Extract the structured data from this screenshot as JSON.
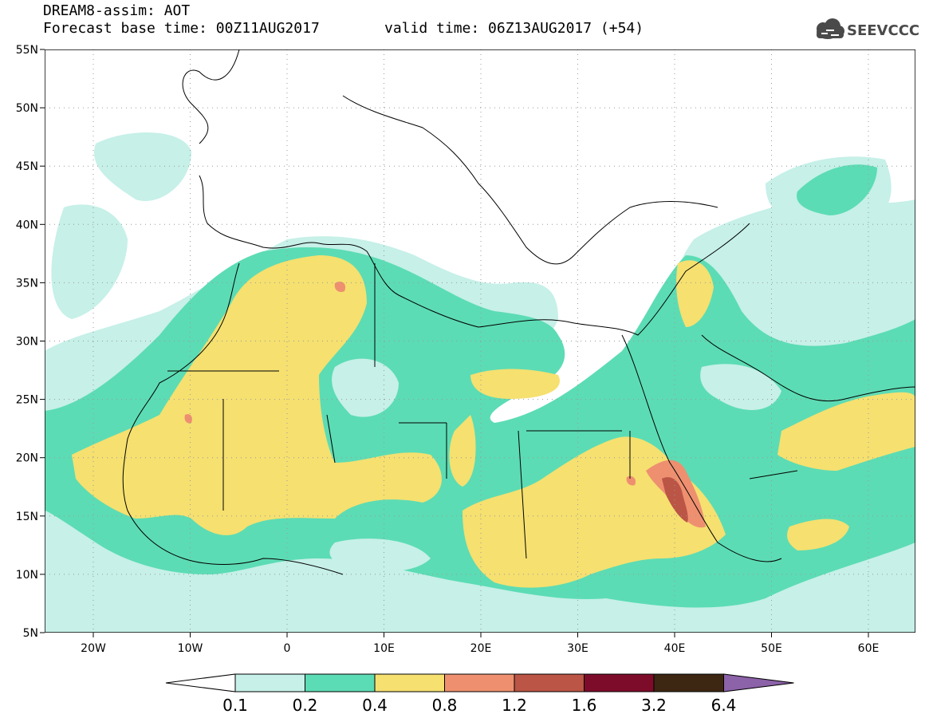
{
  "header": {
    "product": "DREAM8-assim: AOT",
    "base_time": "Forecast base time: 00Z11AUG2017",
    "valid_time": "valid time: 06Z13AUG2017 (+54)"
  },
  "logo": {
    "text": "SEEVCCC",
    "icon": "cloud-icon"
  },
  "map": {
    "lat_labels": [
      "55N",
      "50N",
      "45N",
      "40N",
      "35N",
      "30N",
      "25N",
      "20N",
      "15N",
      "10N",
      "5N"
    ],
    "lon_labels": [
      "20W",
      "10W",
      "0",
      "10E",
      "20E",
      "30E",
      "40E",
      "50E",
      "60E"
    ]
  },
  "colorbar": {
    "labels": [
      "0.1",
      "0.2",
      "0.4",
      "0.8",
      "1.2",
      "1.6",
      "3.2",
      "6.4"
    ],
    "colors": [
      "#ffffff",
      "#c6f0e8",
      "#5cdcb4",
      "#f5e070",
      "#ee9070",
      "#bb5545",
      "#7d0c2a",
      "#3d2712",
      "#8c62a8"
    ]
  },
  "colors": {
    "sea": "#ffffff",
    "aot_01_02": "#c6f0e8",
    "aot_02_04": "#5cdcb4",
    "aot_04_08": "#f5e070",
    "aot_08_12": "#ee9070",
    "aot_12_16": "#bb5545"
  }
}
